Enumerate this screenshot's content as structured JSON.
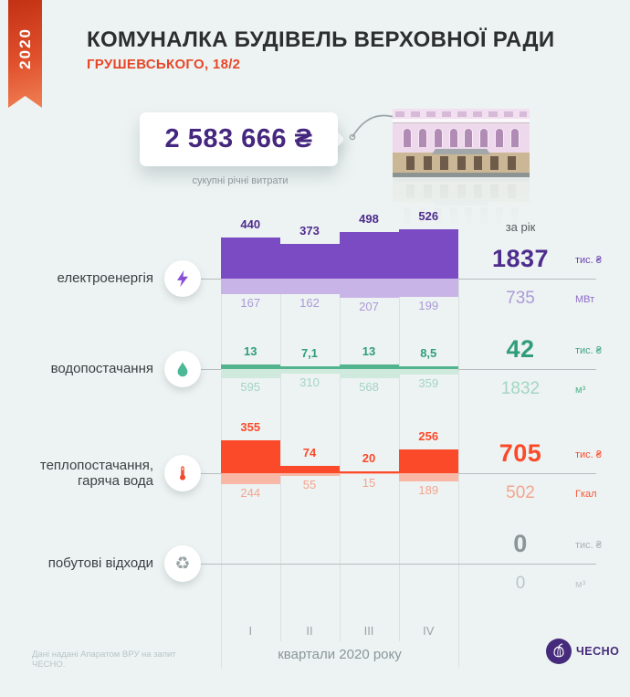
{
  "ribbon": {
    "year": "2020"
  },
  "header": {
    "title": "КОМУНАЛКА БУДІВЕЛЬ ВЕРХОВНОЇ РАДИ",
    "subtitle": "ГРУШЕВСЬКОГО, 18/2"
  },
  "price_tag": {
    "amount": "2 583 666 ₴",
    "caption": "сукупні річні витрати"
  },
  "chart_data": {
    "type": "bar",
    "categories": [
      "I",
      "II",
      "III",
      "IV"
    ],
    "xlabel": "квартали 2020 року",
    "year_column_label": "за рік",
    "legend_position": "right",
    "grid": true,
    "rows": [
      {
        "label_lines": [
          "електроенергія"
        ],
        "icon": "lightning-icon",
        "money": {
          "values": [
            440,
            373,
            498,
            526
          ],
          "labels": [
            "440",
            "373",
            "498",
            "526"
          ],
          "total": "1837",
          "unit": "тис. ₴"
        },
        "usage": {
          "values": [
            167,
            162,
            207,
            199
          ],
          "labels": [
            "167",
            "162",
            "207",
            "199"
          ],
          "total": "735",
          "unit": "МВт"
        },
        "colors": {
          "bar": "#7a4bc2",
          "bar_light": "#c9b4e7",
          "strong": "#4e2c8e",
          "soft": "#ab99d8",
          "unit": "#6b40b2",
          "unit2": "#8d6cc9"
        }
      },
      {
        "label_lines": [
          "водопостачання"
        ],
        "icon": "droplet-icon",
        "money": {
          "values": [
            13,
            7.1,
            13,
            8.5
          ],
          "labels": [
            "13",
            "7,1",
            "13",
            "8,5"
          ],
          "total": "42",
          "unit": "тис. ₴"
        },
        "usage": {
          "values": [
            595,
            310,
            568,
            359
          ],
          "labels": [
            "595",
            "310",
            "568",
            "359"
          ],
          "total": "1832",
          "unit": "м³"
        },
        "colors": {
          "bar": "#52b48e",
          "bar_light": "#cfe9dd",
          "strong": "#2f9e78",
          "soft": "#a3d5c3",
          "unit": "#3da683",
          "unit2": "#52b48e"
        }
      },
      {
        "label_lines": [
          "теплопостачання,",
          "гаряча вода"
        ],
        "icon": "thermometer-icon",
        "money": {
          "values": [
            355,
            74,
            20,
            256
          ],
          "labels": [
            "355",
            "74",
            "20",
            "256"
          ],
          "total": "705",
          "unit": "тис. ₴"
        },
        "usage": {
          "values": [
            244,
            55,
            15,
            189
          ],
          "labels": [
            "244",
            "55",
            "15",
            "189"
          ],
          "total": "502",
          "unit": "Гкал"
        },
        "colors": {
          "bar": "#fb4a2a",
          "bar_light": "#f9b7a6",
          "strong": "#fb4a2a",
          "soft": "#f5a48f",
          "unit": "#fb4a2a",
          "unit2": "#f4583a"
        }
      },
      {
        "label_lines": [
          "побутові відходи"
        ],
        "icon": "recycle-icon",
        "money": {
          "values": [],
          "labels": [],
          "total": "0",
          "unit": "тис. ₴"
        },
        "usage": {
          "values": [],
          "labels": [],
          "total": "0",
          "unit": "м³"
        },
        "colors": {
          "bar": "#b9c3c6",
          "bar_light": "#d6dedd",
          "strong": "#8c9599",
          "soft": "#bcc6c8",
          "unit": "#a8b2b5",
          "unit2": "#bcc6c8"
        }
      }
    ]
  },
  "footer": {
    "source": "Дані надані Апаратом ВРУ на запит ЧЕСНО.",
    "brand": "ЧЕСНО"
  }
}
